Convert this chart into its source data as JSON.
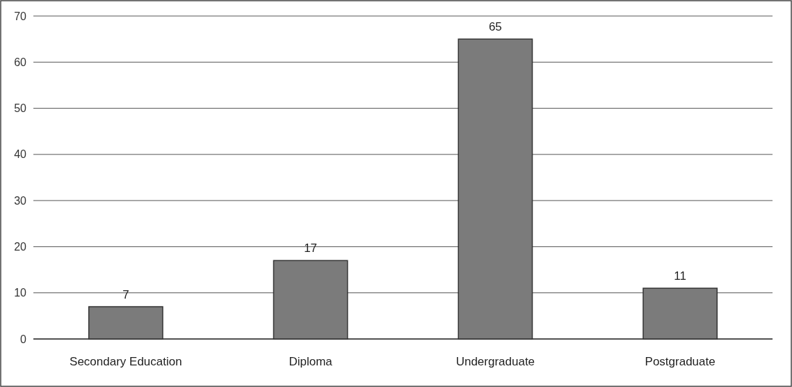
{
  "chart_data": {
    "type": "bar",
    "categories": [
      "Secondary Education",
      "Diploma",
      "Undergraduate",
      "Postgraduate"
    ],
    "values": [
      7,
      17,
      65,
      11
    ],
    "color": "#7b7b7b",
    "data_labels": true,
    "ylim": [
      0,
      70
    ],
    "yticks": [
      0,
      10,
      20,
      30,
      40,
      50,
      60,
      70
    ],
    "grid": "y"
  }
}
